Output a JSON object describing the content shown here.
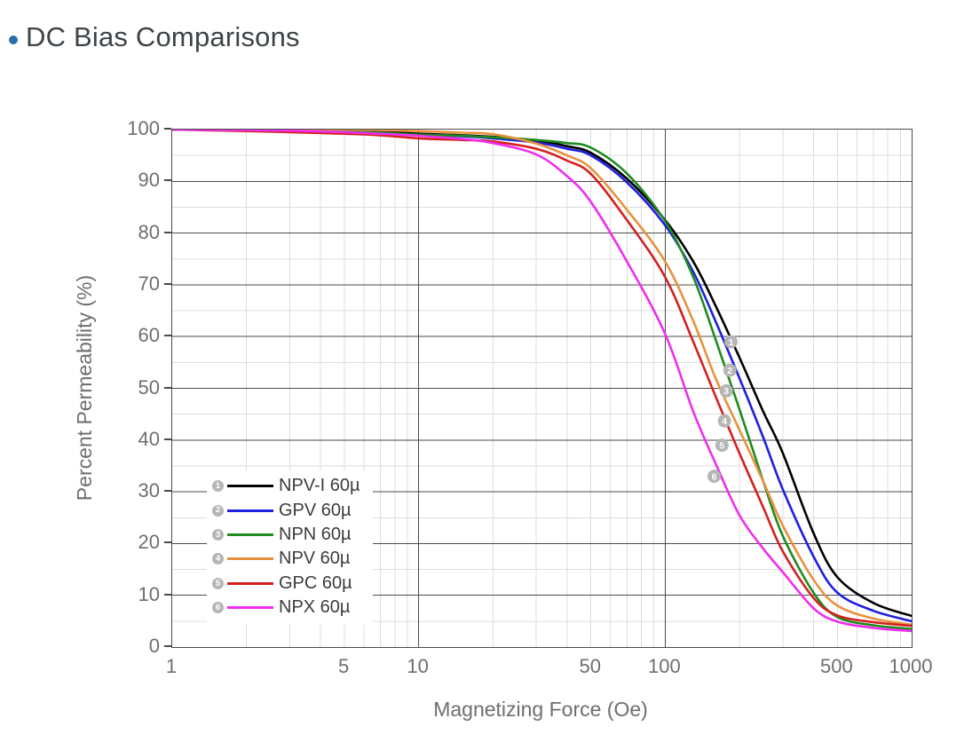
{
  "title": {
    "text": "DC Bias Comparisons",
    "bullet_color": "#2e6dad"
  },
  "chart_data": {
    "type": "line",
    "title": "DC Bias Comparisons",
    "xlabel": "Magnetizing Force (Oe)",
    "ylabel": "Percent Permeability (%)",
    "x_scale": "log",
    "xlim": [
      1,
      1000
    ],
    "ylim": [
      0,
      100
    ],
    "x_tick_labels": [
      "1",
      "5",
      "10",
      "50",
      "100",
      "500",
      "1000"
    ],
    "x_tick_values": [
      1,
      5,
      10,
      50,
      100,
      500,
      1000
    ],
    "y_tick_values": [
      0,
      10,
      20,
      30,
      40,
      50,
      60,
      70,
      80,
      90,
      100
    ],
    "grid": {
      "major_color": "#4a4a4a",
      "minor_color": "#dcdcdc",
      "y_major_step": 10,
      "y_minor_step": 5,
      "x_major_decades": [
        10,
        100,
        1000
      ]
    },
    "legend_position": "inside-lower-left",
    "marker_style": {
      "fill": "#b6b6b6",
      "text_color": "#ffffff"
    },
    "x": [
      1,
      2,
      3,
      5,
      7,
      10,
      15,
      20,
      30,
      40,
      50,
      70,
      100,
      130,
      160,
      200,
      250,
      300,
      400,
      500,
      700,
      1000
    ],
    "series": [
      {
        "index": "1",
        "name": "NPV-I 60µ",
        "color": "#000000",
        "values": [
          100,
          100,
          99.9,
          99.8,
          99.6,
          99.2,
          98.9,
          98.6,
          97.9,
          96.8,
          95.5,
          90.5,
          82.5,
          74.5,
          66,
          56,
          45.5,
          37.5,
          22,
          13.5,
          8.5,
          6
        ],
        "marker": {
          "x": 185,
          "y": 59
        }
      },
      {
        "index": "2",
        "name": "GPV 60µ",
        "color": "#1f1fe0",
        "values": [
          100,
          99.9,
          99.8,
          99.6,
          99.4,
          99.0,
          98.7,
          98.3,
          97.5,
          96.3,
          95.0,
          89.8,
          81.5,
          72.5,
          63,
          52,
          40.5,
          30.5,
          17.5,
          10.5,
          7,
          5
        ],
        "marker": {
          "x": 183,
          "y": 53.5
        }
      },
      {
        "index": "3",
        "name": "NPN 60µ",
        "color": "#1e8c1e",
        "values": [
          100,
          99.9,
          99.8,
          99.6,
          99.4,
          99.0,
          98.8,
          98.5,
          98.0,
          97.4,
          96.5,
          91.5,
          82.3,
          71.5,
          59.5,
          46,
          32,
          21.5,
          10.5,
          5.8,
          4.2,
          3.5
        ],
        "marker": {
          "x": 177,
          "y": 49.5
        }
      },
      {
        "index": "4",
        "name": "NPV 60µ",
        "color": "#e8913c",
        "values": [
          100,
          100,
          100,
          100,
          99.9,
          99.7,
          99.4,
          99.1,
          97.3,
          95.0,
          92.5,
          84.5,
          74.5,
          63,
          52,
          42,
          32,
          23.5,
          13,
          8.0,
          5.5,
          4.3
        ],
        "marker": {
          "x": 174,
          "y": 43.7
        }
      },
      {
        "index": "5",
        "name": "GPC 60µ",
        "color": "#d42020",
        "values": [
          100,
          99.7,
          99.5,
          99.2,
          98.9,
          98.3,
          98.0,
          97.7,
          96.3,
          94.0,
          91.4,
          82.5,
          71.5,
          59,
          48.5,
          37.5,
          27,
          18.5,
          9.5,
          6.1,
          4.8,
          4.1
        ],
        "marker": {
          "x": 170,
          "y": 39
        }
      },
      {
        "index": "6",
        "name": "NPX 60µ",
        "color": "#ee2eee",
        "values": [
          100,
          99.9,
          99.8,
          99.5,
          99.2,
          98.8,
          98.2,
          97.4,
          95.2,
          91.0,
          86.0,
          74.5,
          60.5,
          45.5,
          35.5,
          25.5,
          19,
          14.5,
          7.5,
          4.9,
          3.7,
          3.1
        ],
        "marker": {
          "x": 158,
          "y": 33
        }
      }
    ]
  }
}
